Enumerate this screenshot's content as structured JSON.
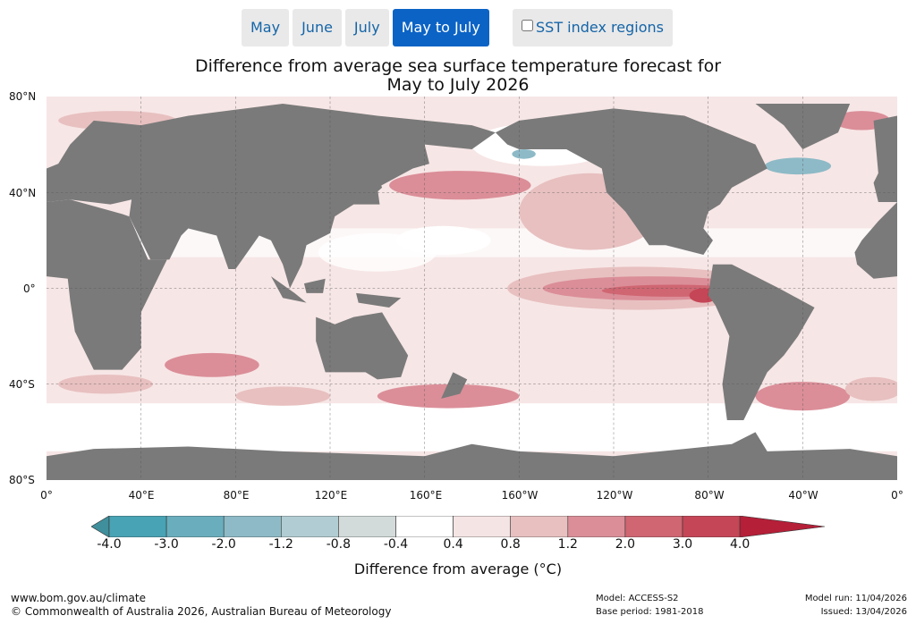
{
  "tabs": [
    {
      "label": "May",
      "active": false
    },
    {
      "label": "June",
      "active": false
    },
    {
      "label": "July",
      "active": false
    },
    {
      "label": "May to July",
      "active": true
    }
  ],
  "sst_toggle": {
    "label": "SST index regions",
    "checked": false
  },
  "title": {
    "line1": "Difference from average sea surface temperature forecast for",
    "line2": "May to July 2026"
  },
  "map": {
    "lat_labels": [
      "80°N",
      "40°N",
      "0°",
      "40°S",
      "80°S"
    ],
    "lon_labels": [
      "0°",
      "40°E",
      "80°E",
      "120°E",
      "160°E",
      "160°W",
      "120°W",
      "80°W",
      "40°W",
      "0°"
    ],
    "land_color": "#7a7a7a"
  },
  "colorbar": {
    "ticks": [
      "-4.0",
      "-3.0",
      "-2.0",
      "-1.2",
      "-0.8",
      "-0.4",
      "0.4",
      "0.8",
      "1.2",
      "2.0",
      "3.0",
      "4.0"
    ],
    "colors": [
      "#3f8f9c",
      "#48a3b4",
      "#6aaebe",
      "#8dbac6",
      "#b1cdd3",
      "#d3dada",
      "#ffffff",
      "#f5e4e4",
      "#e8c0c0",
      "#db8e98",
      "#cf6672",
      "#c54656",
      "#b51f38"
    ],
    "label": "Difference from average (°C)"
  },
  "footer": {
    "url": "www.bom.gov.au/climate",
    "copyright": "© Commonwealth of Australia 2026, Australian Bureau of Meteorology",
    "model": "Model: ACCESS-S2",
    "base_period": "Base period: 1981-2018",
    "model_run": "Model run: 11/04/2026",
    "issued": "Issued: 13/04/2026"
  }
}
